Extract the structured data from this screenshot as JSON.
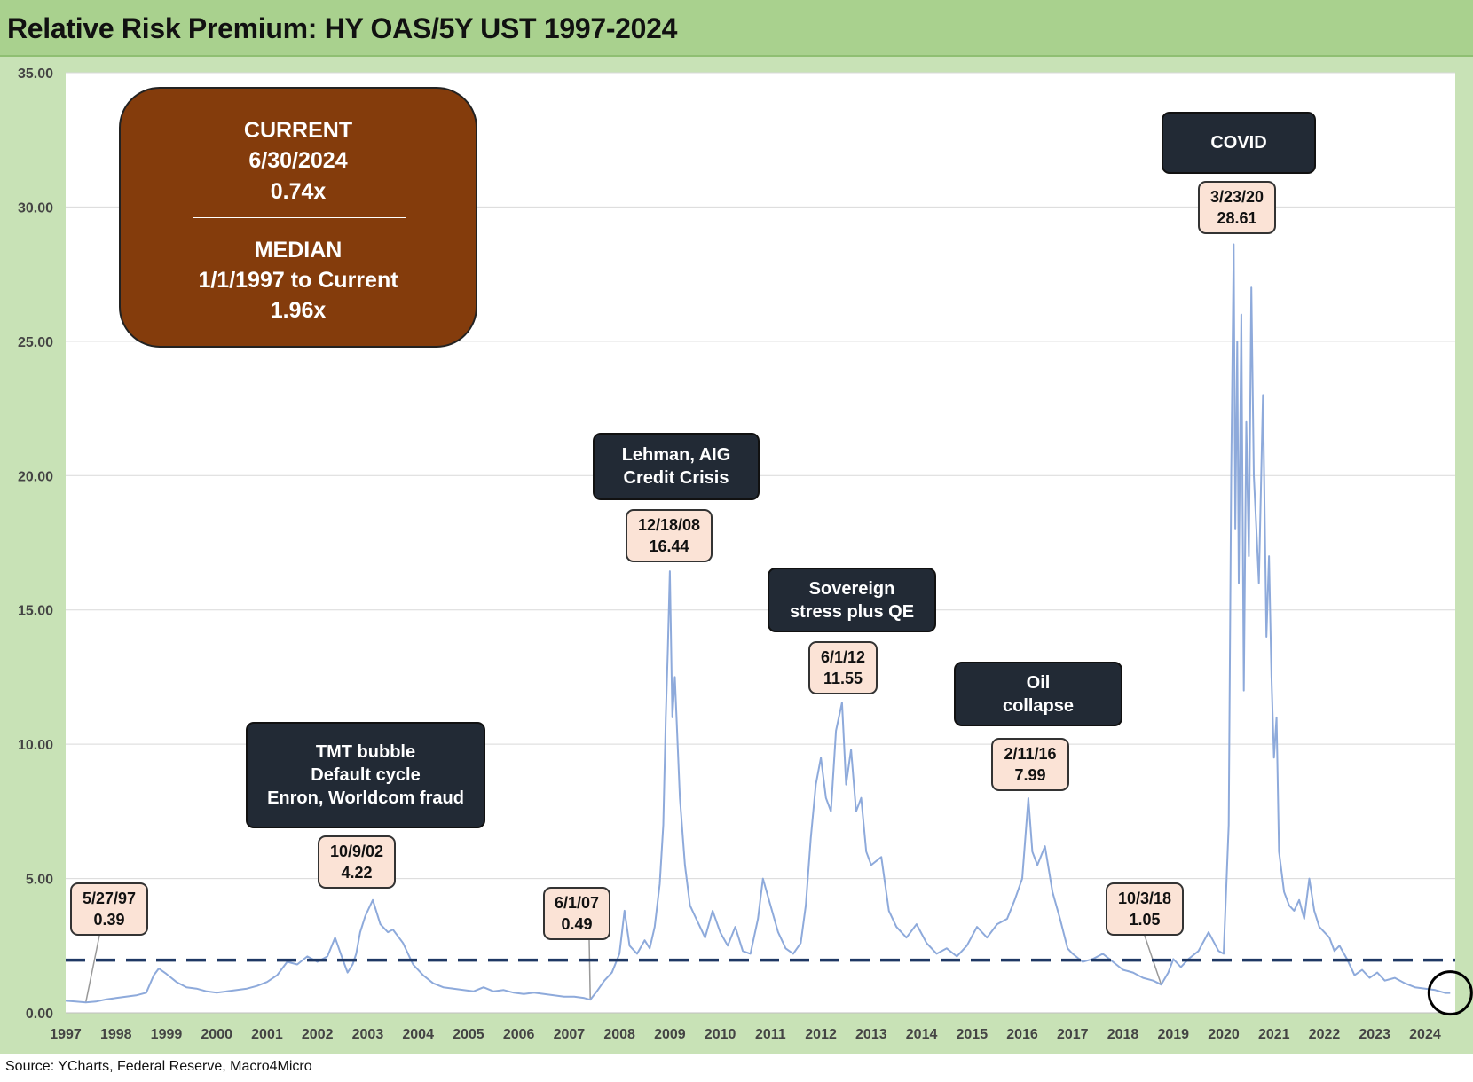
{
  "title": "Relative Risk Premium: HY OAS/5Y UST 1997-2024",
  "source": "Source: YCharts, Federal Reserve, Macro4Micro",
  "colors": {
    "line": "#8eaadb",
    "median_line": "#1f3864",
    "stats_box": "#843c0c",
    "event_box": "#222a35",
    "peak_box": "#fbe3d6",
    "header": "#a9d18e"
  },
  "stats": {
    "current_label": "CURRENT",
    "current_date": "6/30/2024",
    "current_value": "0.74x",
    "median_label": "MEDIAN",
    "median_range": "1/1/1997 to Current",
    "median_value": "1.96x"
  },
  "events": [
    {
      "line1": "TMT bubble",
      "line2": "Default cycle",
      "line3": "Enron, Worldcom fraud"
    },
    {
      "line1": "Lehman, AIG",
      "line2": "Credit Crisis"
    },
    {
      "line1": "Sovereign",
      "line2": "stress plus QE"
    },
    {
      "line1": "Oil",
      "line2": "collapse"
    },
    {
      "line1": "COVID"
    }
  ],
  "peaks": [
    {
      "date": "5/27/97",
      "value": "0.39"
    },
    {
      "date": "10/9/02",
      "value": "4.22"
    },
    {
      "date": "6/1/07",
      "value": "0.49"
    },
    {
      "date": "12/18/08",
      "value": "16.44"
    },
    {
      "date": "6/1/12",
      "value": "11.55"
    },
    {
      "date": "2/11/16",
      "value": "7.99"
    },
    {
      "date": "10/3/18",
      "value": "1.05"
    },
    {
      "date": "3/23/20",
      "value": "28.61"
    }
  ],
  "chart_data": {
    "type": "line",
    "title": "Relative Risk Premium: HY OAS/5Y UST 1997-2024",
    "xlabel": "",
    "ylabel": "",
    "ylim": [
      0,
      35
    ],
    "xlim": [
      1997.0,
      2024.6
    ],
    "y_ticks": [
      "0.00",
      "5.00",
      "10.00",
      "15.00",
      "20.00",
      "25.00",
      "30.00",
      "35.00"
    ],
    "x_ticks": [
      "1997",
      "1998",
      "1999",
      "2000",
      "2001",
      "2002",
      "2003",
      "2004",
      "2005",
      "2006",
      "2007",
      "2008",
      "2009",
      "2010",
      "2011",
      "2012",
      "2013",
      "2014",
      "2015",
      "2016",
      "2017",
      "2018",
      "2019",
      "2020",
      "2021",
      "2022",
      "2023",
      "2024"
    ],
    "median": 1.96,
    "current": {
      "date": "6/30/2024",
      "x": 2024.5,
      "value": 0.74
    },
    "series": [
      {
        "name": "HY OAS/5Y UST",
        "x": [
          1997.0,
          1997.2,
          1997.4,
          1997.6,
          1997.8,
          1998.0,
          1998.2,
          1998.4,
          1998.6,
          1998.75,
          1998.85,
          1999.0,
          1999.2,
          1999.4,
          1999.6,
          1999.8,
          2000.0,
          2000.2,
          2000.4,
          2000.6,
          2000.8,
          2001.0,
          2001.2,
          2001.4,
          2001.6,
          2001.8,
          2002.0,
          2002.2,
          2002.35,
          2002.5,
          2002.6,
          2002.7,
          2002.77,
          2002.85,
          2002.95,
          2003.1,
          2003.25,
          2003.4,
          2003.5,
          2003.7,
          2003.9,
          2004.1,
          2004.3,
          2004.5,
          2004.7,
          2004.9,
          2005.1,
          2005.3,
          2005.5,
          2005.7,
          2005.9,
          2006.1,
          2006.3,
          2006.5,
          2006.7,
          2006.9,
          2007.1,
          2007.3,
          2007.42,
          2007.55,
          2007.7,
          2007.85,
          2008.0,
          2008.1,
          2008.2,
          2008.35,
          2008.5,
          2008.6,
          2008.7,
          2008.8,
          2008.87,
          2008.92,
          2008.96,
          2009.0,
          2009.05,
          2009.1,
          2009.2,
          2009.3,
          2009.4,
          2009.5,
          2009.6,
          2009.7,
          2009.85,
          2010.0,
          2010.15,
          2010.3,
          2010.45,
          2010.6,
          2010.75,
          2010.85,
          2011.0,
          2011.15,
          2011.3,
          2011.45,
          2011.6,
          2011.7,
          2011.8,
          2011.9,
          2012.0,
          2012.1,
          2012.2,
          2012.3,
          2012.42,
          2012.5,
          2012.6,
          2012.7,
          2012.8,
          2012.9,
          2013.0,
          2013.2,
          2013.35,
          2013.5,
          2013.7,
          2013.9,
          2014.1,
          2014.3,
          2014.5,
          2014.7,
          2014.9,
          2015.1,
          2015.3,
          2015.5,
          2015.7,
          2015.85,
          2016.0,
          2016.12,
          2016.2,
          2016.3,
          2016.45,
          2016.6,
          2016.75,
          2016.9,
          2017.0,
          2017.2,
          2017.4,
          2017.6,
          2017.8,
          2018.0,
          2018.2,
          2018.4,
          2018.6,
          2018.76,
          2018.9,
          2019.0,
          2019.15,
          2019.3,
          2019.5,
          2019.7,
          2019.9,
          2020.0,
          2020.1,
          2020.15,
          2020.2,
          2020.23,
          2020.27,
          2020.3,
          2020.35,
          2020.4,
          2020.45,
          2020.5,
          2020.55,
          2020.6,
          2020.65,
          2020.7,
          2020.78,
          2020.85,
          2020.9,
          2020.95,
          2021.0,
          2021.05,
          2021.1,
          2021.2,
          2021.3,
          2021.4,
          2021.5,
          2021.6,
          2021.7,
          2021.8,
          2021.9,
          2022.0,
          2022.1,
          2022.2,
          2022.3,
          2022.45,
          2022.6,
          2022.75,
          2022.9,
          2023.05,
          2023.2,
          2023.4,
          2023.6,
          2023.8,
          2024.0,
          2024.2,
          2024.4,
          2024.5
        ],
        "values": [
          0.45,
          0.42,
          0.39,
          0.42,
          0.5,
          0.55,
          0.6,
          0.65,
          0.75,
          1.4,
          1.65,
          1.45,
          1.15,
          0.95,
          0.9,
          0.8,
          0.75,
          0.8,
          0.85,
          0.9,
          1.0,
          1.15,
          1.4,
          1.9,
          1.8,
          2.1,
          1.9,
          2.1,
          2.8,
          2.0,
          1.5,
          1.8,
          2.2,
          3.0,
          3.6,
          4.2,
          3.3,
          3.0,
          3.1,
          2.6,
          1.8,
          1.4,
          1.1,
          0.95,
          0.9,
          0.85,
          0.8,
          0.95,
          0.8,
          0.85,
          0.75,
          0.7,
          0.75,
          0.7,
          0.65,
          0.6,
          0.6,
          0.55,
          0.49,
          0.8,
          1.2,
          1.5,
          2.2,
          3.8,
          2.5,
          2.2,
          2.7,
          2.4,
          3.2,
          4.8,
          7.0,
          11.0,
          13.5,
          16.44,
          11.0,
          12.5,
          8.0,
          5.5,
          4.0,
          3.6,
          3.2,
          2.8,
          3.8,
          3.0,
          2.5,
          3.2,
          2.3,
          2.2,
          3.5,
          5.0,
          4.0,
          3.0,
          2.4,
          2.2,
          2.6,
          4.0,
          6.5,
          8.5,
          9.5,
          8.0,
          7.5,
          10.5,
          11.55,
          8.5,
          9.8,
          7.5,
          8.0,
          6.0,
          5.5,
          5.8,
          3.8,
          3.2,
          2.8,
          3.3,
          2.6,
          2.2,
          2.4,
          2.1,
          2.5,
          3.2,
          2.8,
          3.3,
          3.5,
          4.2,
          5.0,
          7.99,
          6.0,
          5.5,
          6.2,
          4.5,
          3.5,
          2.4,
          2.2,
          1.9,
          2.0,
          2.2,
          1.9,
          1.6,
          1.5,
          1.3,
          1.2,
          1.05,
          1.5,
          2.0,
          1.7,
          2.0,
          2.3,
          3.0,
          2.3,
          2.2,
          7.0,
          20.0,
          28.61,
          18.0,
          25.0,
          16.0,
          26.0,
          12.0,
          22.0,
          17.0,
          27.0,
          20.0,
          18.0,
          16.0,
          23.0,
          14.0,
          17.0,
          12.5,
          9.5,
          11.0,
          6.0,
          4.5,
          4.0,
          3.8,
          4.2,
          3.5,
          5.0,
          3.8,
          3.2,
          3.0,
          2.8,
          2.3,
          2.5,
          2.0,
          1.4,
          1.6,
          1.3,
          1.5,
          1.2,
          1.3,
          1.1,
          0.95,
          0.9,
          0.85,
          0.74,
          0.74
        ]
      }
    ]
  }
}
